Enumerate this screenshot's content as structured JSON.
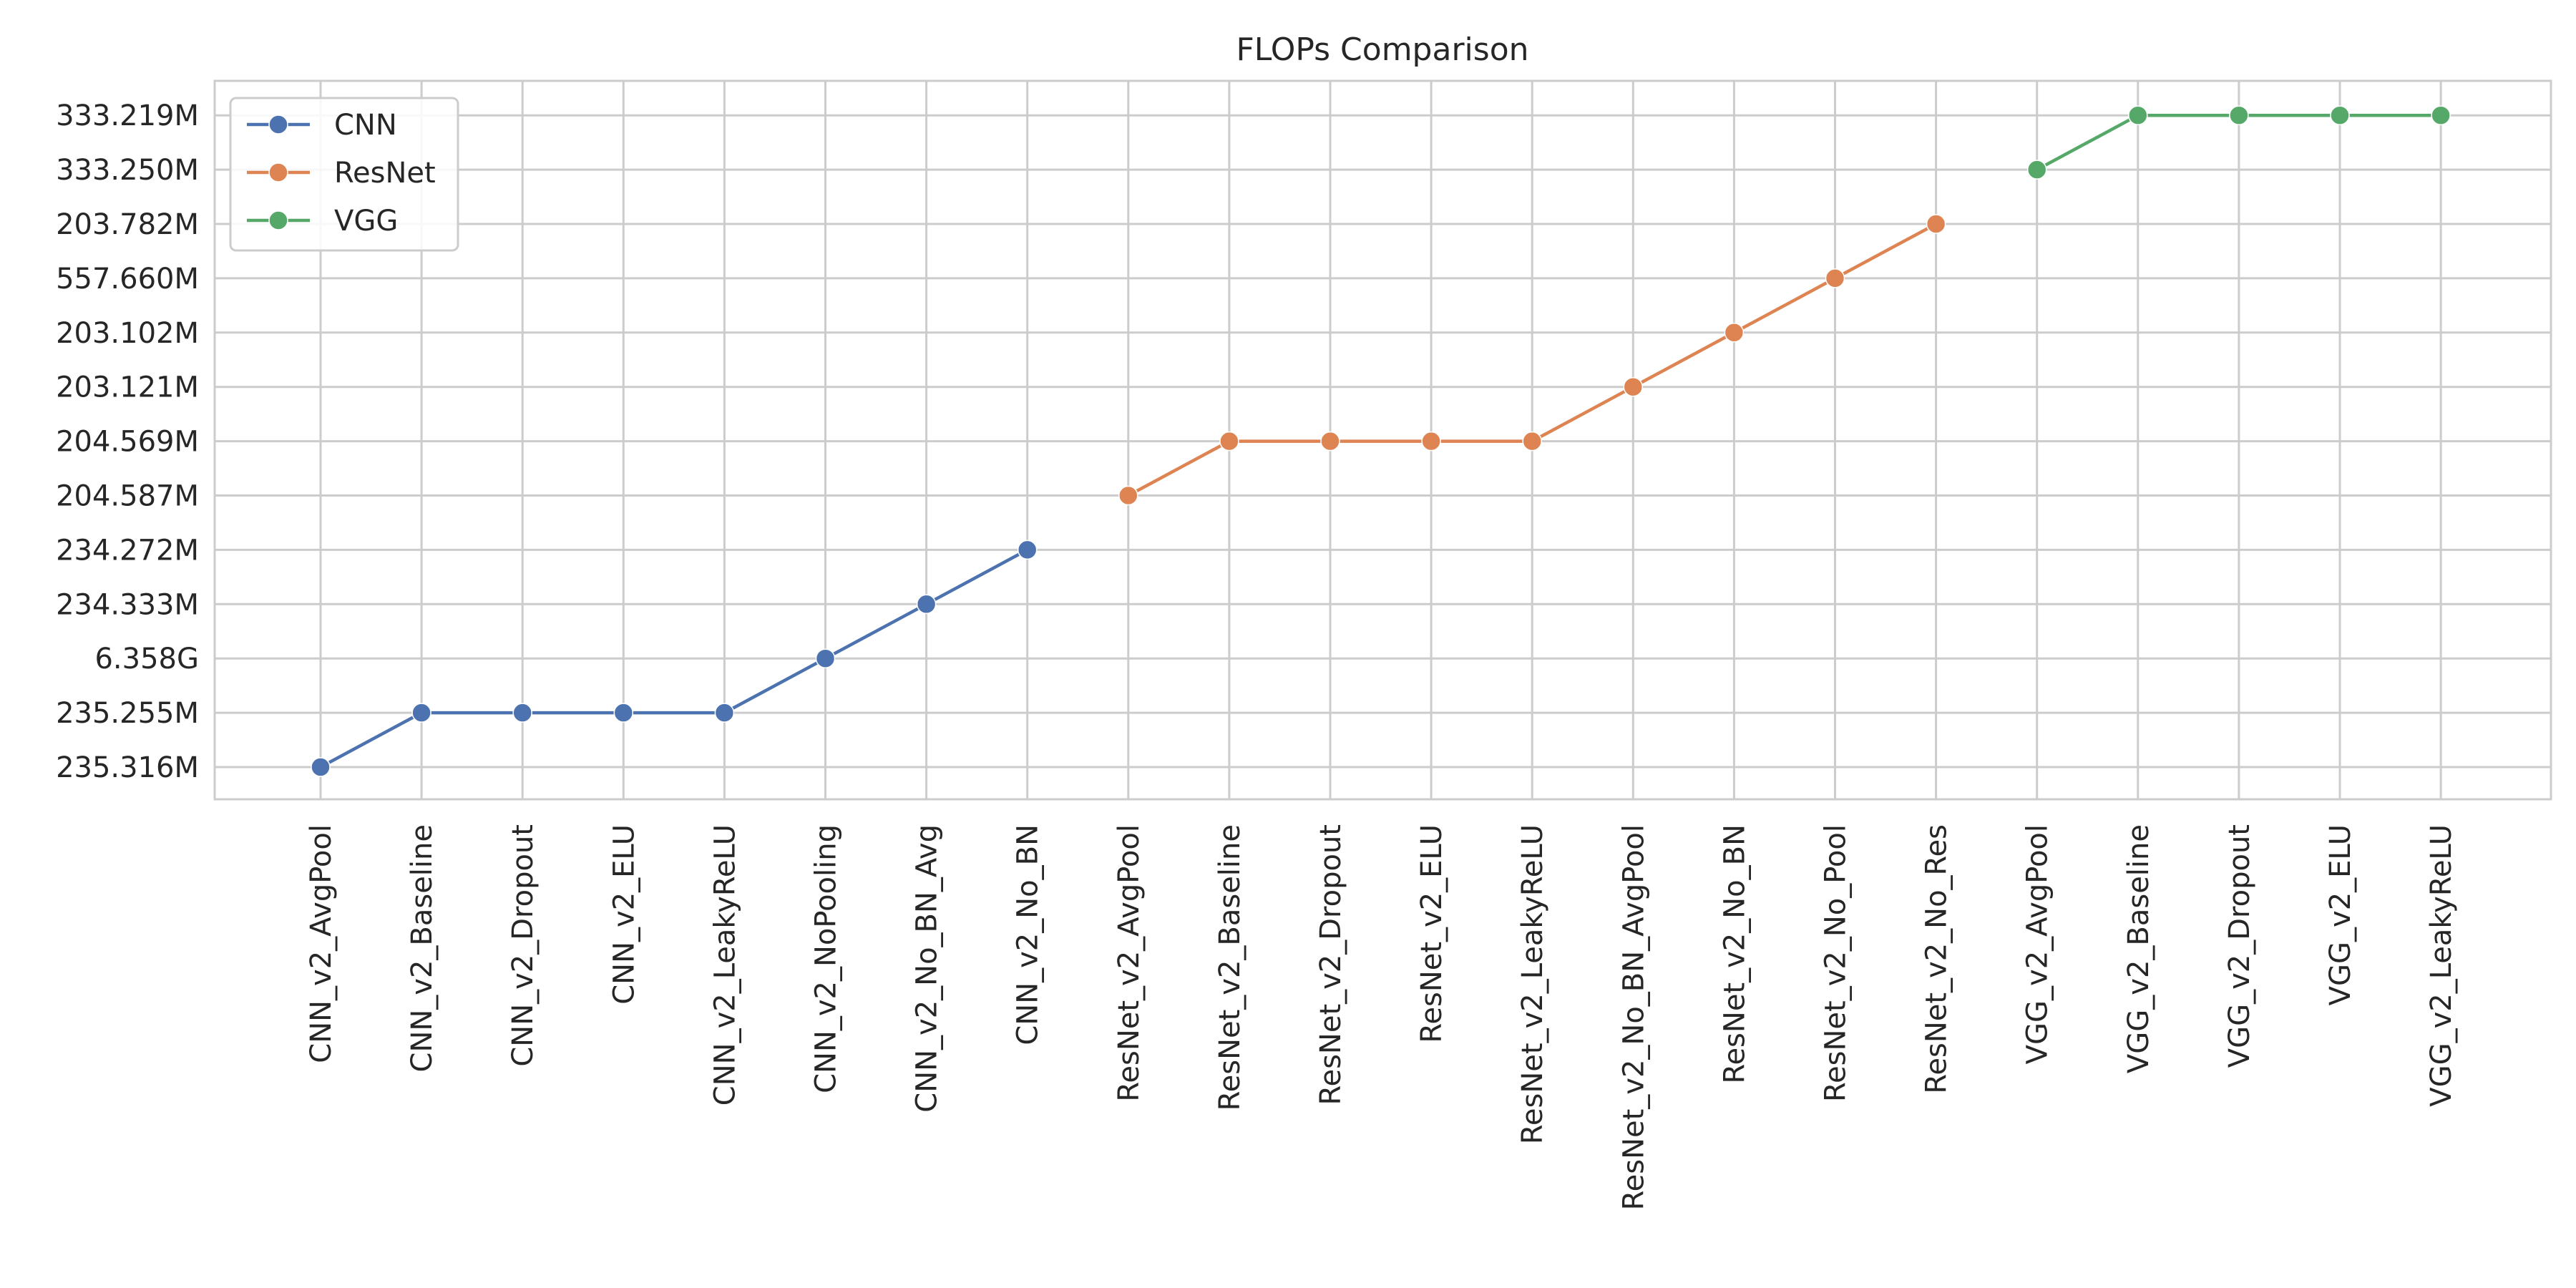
{
  "chart_data": {
    "type": "line",
    "title": "FLOPs Comparison",
    "xlabel": "",
    "ylabel": "",
    "grid": true,
    "legend_position": "top-left",
    "categories": [
      "CNN_v2_AvgPool",
      "CNN_v2_Baseline",
      "CNN_v2_Dropout",
      "CNN_v2_ELU",
      "CNN_v2_LeakyReLU",
      "CNN_v2_NoPooling",
      "CNN_v2_No_BN_Avg",
      "CNN_v2_No_BN",
      "ResNet_v2_AvgPool",
      "ResNet_v2_Baseline",
      "ResNet_v2_Dropout",
      "ResNet_v2_ELU",
      "ResNet_v2_LeakyReLU",
      "ResNet_v2_No_BN_AvgPool",
      "ResNet_v2_No_BN",
      "ResNet_v2_No_Pool",
      "ResNet_v2_No_Res",
      "VGG_v2_AvgPool",
      "VGG_v2_Baseline",
      "VGG_v2_Dropout",
      "VGG_v2_ELU",
      "VGG_v2_LeakyReLU"
    ],
    "y_categories": [
      "235.316M",
      "235.255M",
      "6.358G",
      "234.333M",
      "234.272M",
      "204.587M",
      "204.569M",
      "203.121M",
      "203.102M",
      "557.660M",
      "203.782M",
      "333.250M",
      "333.219M"
    ],
    "series": [
      {
        "name": "CNN",
        "color": "#4c72b0",
        "x": [
          "CNN_v2_AvgPool",
          "CNN_v2_Baseline",
          "CNN_v2_Dropout",
          "CNN_v2_ELU",
          "CNN_v2_LeakyReLU",
          "CNN_v2_NoPooling",
          "CNN_v2_No_BN_Avg",
          "CNN_v2_No_BN"
        ],
        "values": [
          "235.316M",
          "235.255M",
          "235.255M",
          "235.255M",
          "235.255M",
          "6.358G",
          "234.333M",
          "234.272M"
        ]
      },
      {
        "name": "ResNet",
        "color": "#dd8452",
        "x": [
          "ResNet_v2_AvgPool",
          "ResNet_v2_Baseline",
          "ResNet_v2_Dropout",
          "ResNet_v2_ELU",
          "ResNet_v2_LeakyReLU",
          "ResNet_v2_No_BN_AvgPool",
          "ResNet_v2_No_BN",
          "ResNet_v2_No_Pool",
          "ResNet_v2_No_Res"
        ],
        "values": [
          "204.587M",
          "204.569M",
          "204.569M",
          "204.569M",
          "204.569M",
          "203.121M",
          "203.102M",
          "557.660M",
          "203.782M"
        ]
      },
      {
        "name": "VGG",
        "color": "#55a868",
        "x": [
          "VGG_v2_AvgPool",
          "VGG_v2_Baseline",
          "VGG_v2_Dropout",
          "VGG_v2_ELU",
          "VGG_v2_LeakyReLU"
        ],
        "values": [
          "333.250M",
          "333.219M",
          "333.219M",
          "333.219M",
          "333.219M"
        ]
      }
    ]
  }
}
